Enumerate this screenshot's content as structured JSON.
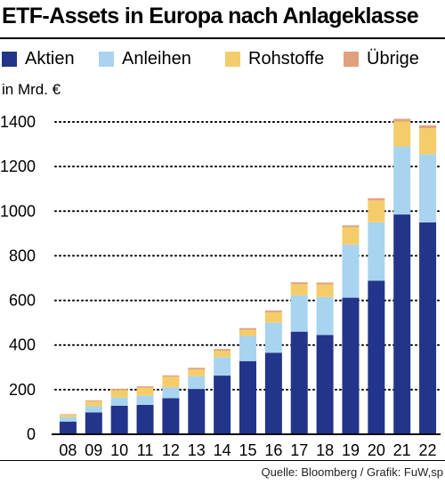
{
  "header": {
    "title": "ETF-Assets in Europa nach Anlageklasse"
  },
  "unit_label": "in Mrd. €",
  "source": "Quelle: Bloomberg / Grafik: FuW,sp",
  "legend": [
    {
      "label": "Aktien",
      "color": "#23358a"
    },
    {
      "label": "Anleihen",
      "color": "#a8d4ef"
    },
    {
      "label": "Rohstoffe",
      "color": "#f4cd6a"
    },
    {
      "label": "Übrige",
      "color": "#e1a17c"
    }
  ],
  "chart_data": {
    "type": "bar",
    "stacked": true,
    "title": "ETF-Assets in Europa nach Anlageklasse",
    "ylabel": "in Mrd. €",
    "ylim": [
      0,
      1400
    ],
    "yticks": [
      0,
      200,
      400,
      600,
      800,
      1000,
      1200,
      1400
    ],
    "grid": "dotted horizontal",
    "legend_position": "top",
    "categories": [
      "08",
      "09",
      "10",
      "11",
      "12",
      "13",
      "14",
      "15",
      "16",
      "17",
      "18",
      "19",
      "20",
      "21",
      "22"
    ],
    "series": [
      {
        "name": "Aktien",
        "color": "#23358a",
        "values": [
          57,
          98,
          128,
          132,
          162,
          203,
          263,
          328,
          365,
          460,
          445,
          612,
          688,
          985,
          950
        ]
      },
      {
        "name": "Anleihen",
        "color": "#a8d4ef",
        "values": [
          20,
          28,
          37,
          40,
          48,
          57,
          83,
          113,
          135,
          163,
          170,
          238,
          262,
          305,
          305
        ]
      },
      {
        "name": "Rohstoffe",
        "color": "#f4cd6a",
        "values": [
          10,
          22,
          33,
          37,
          48,
          30,
          28,
          27,
          47,
          50,
          57,
          78,
          98,
          112,
          117
        ]
      },
      {
        "name": "Übrige",
        "color": "#e1a17c",
        "values": [
          3,
          4,
          6,
          6,
          6,
          8,
          8,
          8,
          8,
          8,
          8,
          8,
          10,
          12,
          13
        ]
      }
    ]
  }
}
